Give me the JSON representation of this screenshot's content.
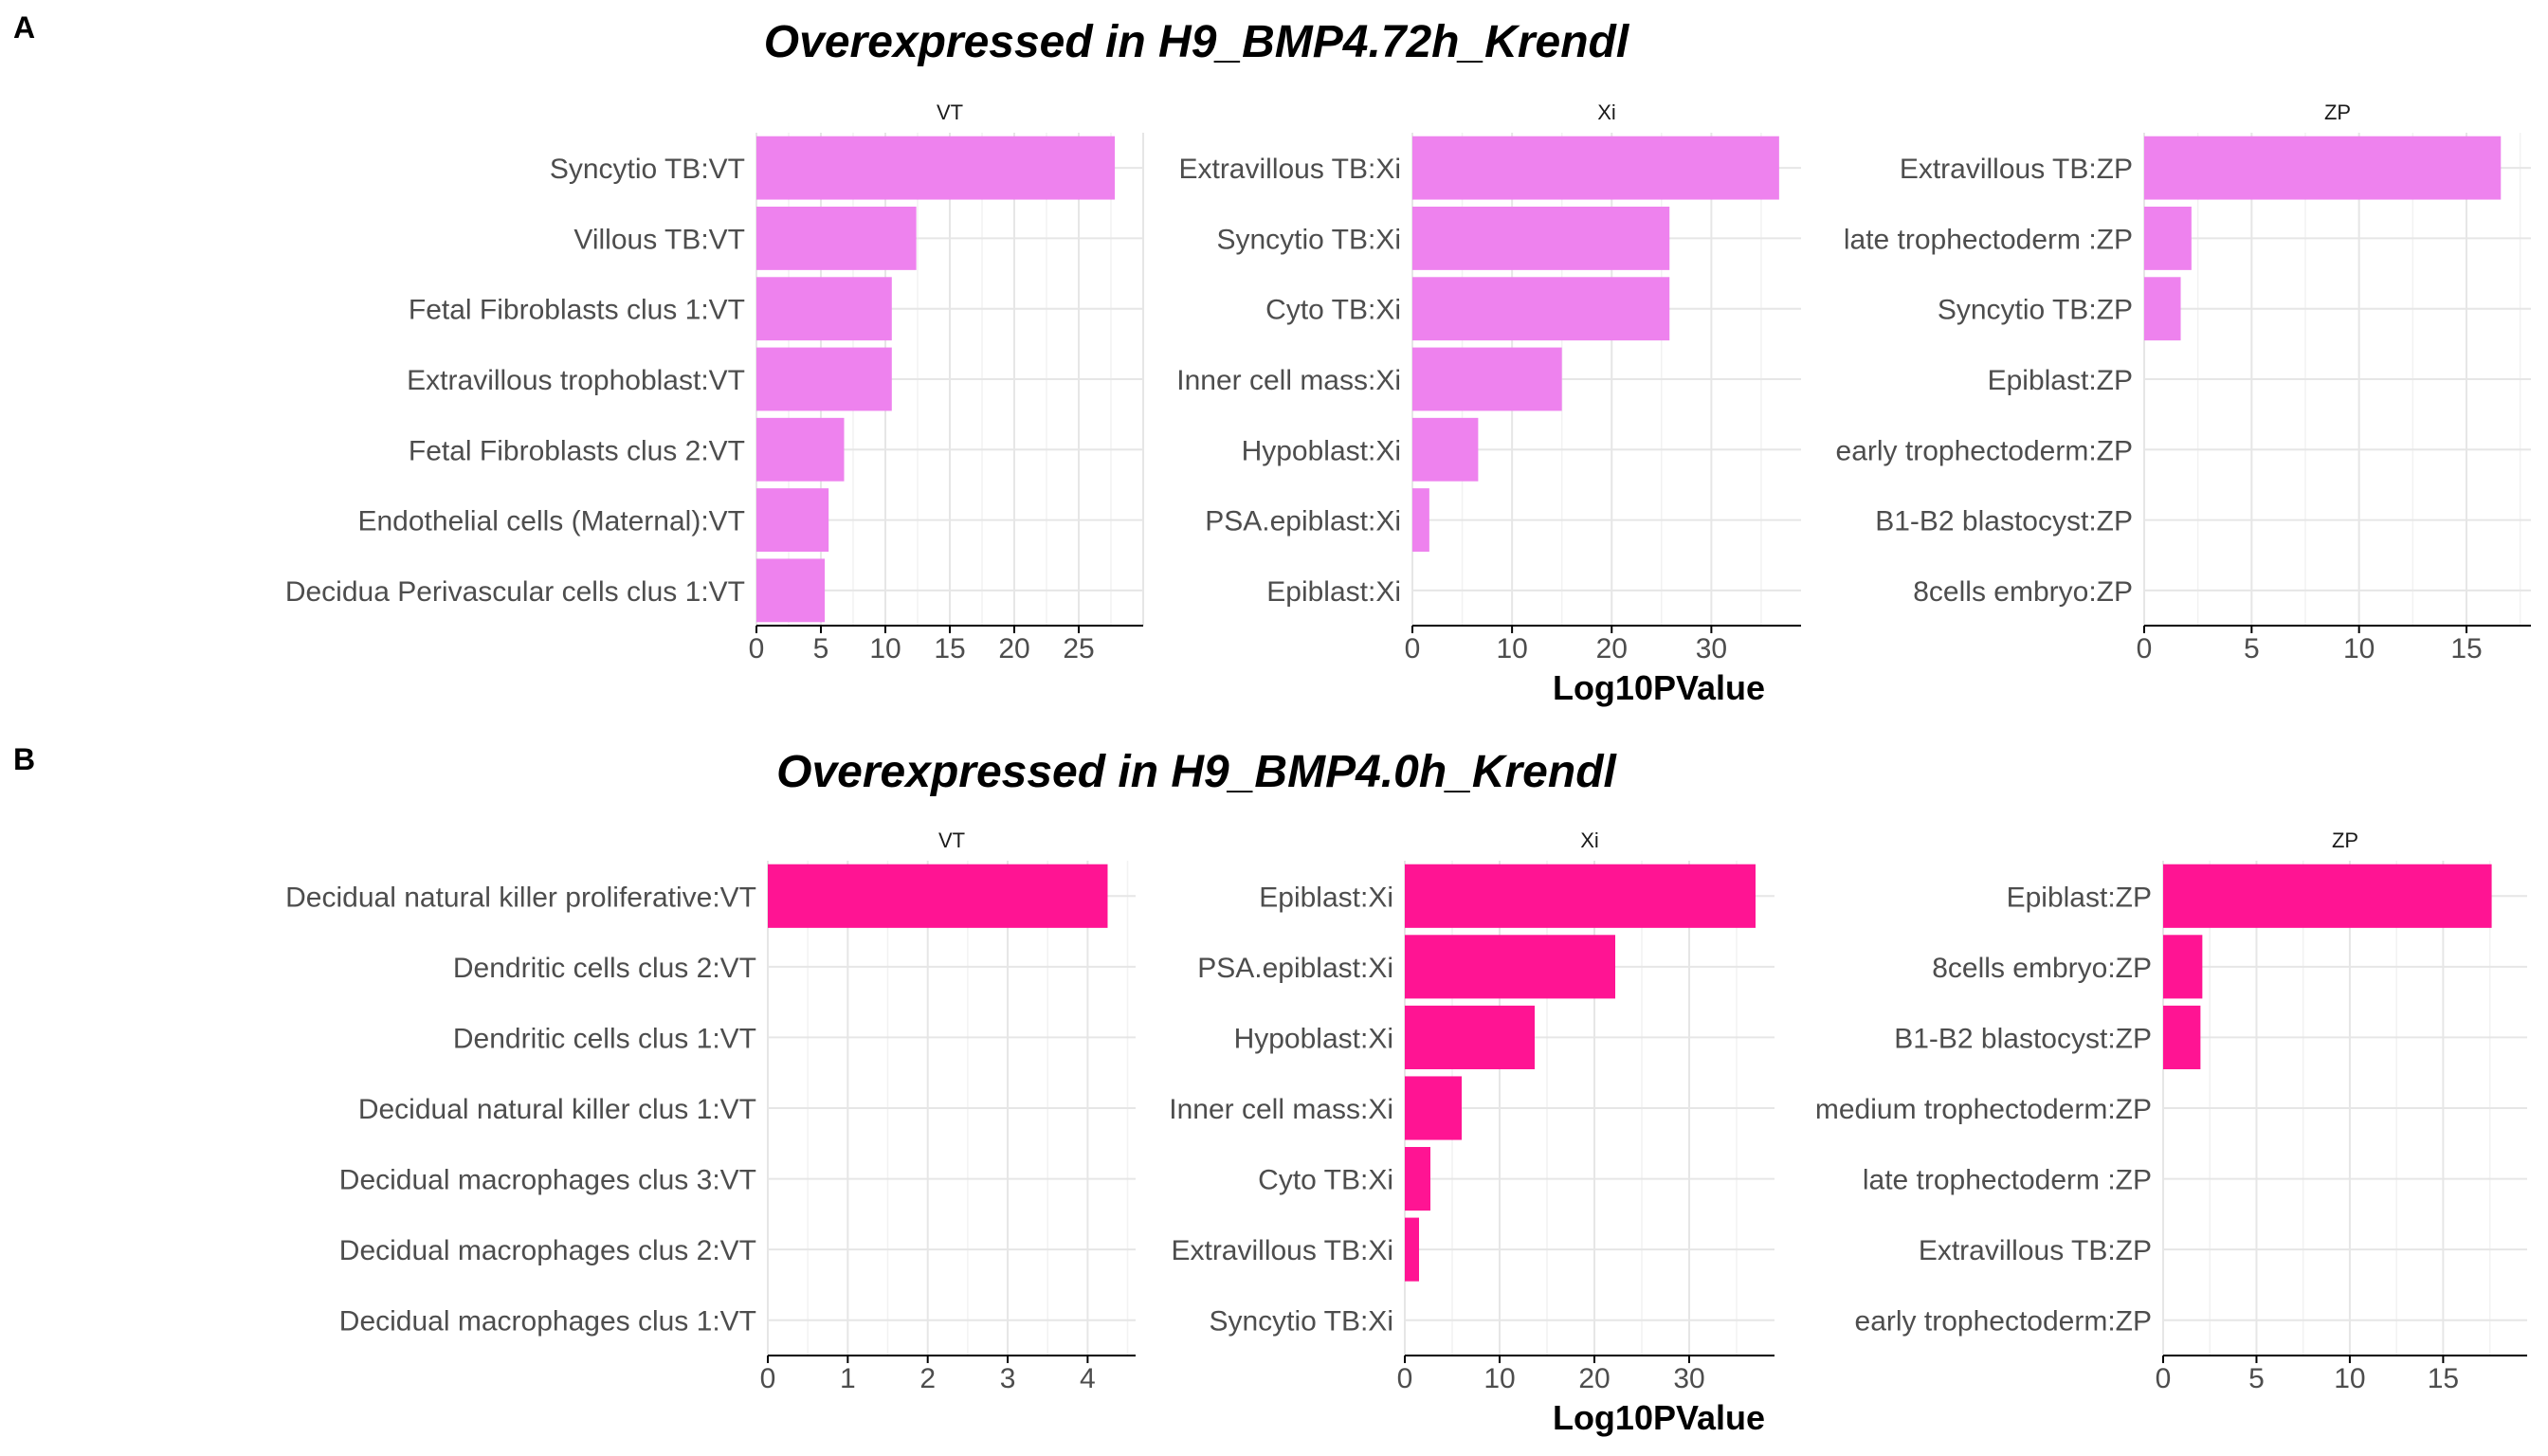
{
  "chart_data": [
    {
      "type": "bar",
      "panel_label": "A",
      "title": "Overexpressed in H9_BMP4.72h_Krendl",
      "xlabel": "Log10PValue",
      "bar_color": "#EE82EE",
      "grid": true,
      "facets": [
        {
          "name": "VT",
          "xlim": [
            0,
            30
          ],
          "ticks": [
            0,
            5,
            10,
            15,
            20,
            25
          ],
          "categories": [
            "Syncytio TB:VT",
            "Villous TB:VT",
            "Fetal Fibroblasts clus 1:VT",
            "Extravillous trophoblast:VT",
            "Fetal Fibroblasts clus 2:VT",
            "Endothelial cells (Maternal):VT",
            "Decidua Perivascular cells clus 1:VT"
          ],
          "values": [
            27.8,
            12.4,
            10.5,
            10.5,
            6.8,
            5.6,
            5.3
          ]
        },
        {
          "name": "Xi",
          "xlim": [
            0,
            39
          ],
          "ticks": [
            0,
            10,
            20,
            30
          ],
          "categories": [
            "Extravillous TB:Xi",
            "Syncytio TB:Xi",
            "Cyto TB:Xi",
            "Inner cell mass:Xi",
            "Hypoblast:Xi",
            "PSA.epiblast:Xi",
            "Epiblast:Xi"
          ],
          "values": [
            36.8,
            25.8,
            25.8,
            15.0,
            6.6,
            1.7,
            0
          ]
        },
        {
          "name": "ZP",
          "xlim": [
            0,
            18
          ],
          "ticks": [
            0,
            5,
            10,
            15
          ],
          "categories": [
            "Extravillous TB:ZP",
            "late trophectoderm :ZP",
            "Syncytio TB:ZP",
            "Epiblast:ZP",
            "early trophectoderm:ZP",
            "B1-B2 blastocyst:ZP",
            "8cells embryo:ZP"
          ],
          "values": [
            16.6,
            2.2,
            1.7,
            0,
            0,
            0,
            0
          ]
        }
      ]
    },
    {
      "type": "bar",
      "panel_label": "B",
      "title": "Overexpressed in H9_BMP4.0h_Krendl",
      "xlabel": "Log10PValue",
      "bar_color": "#FF1493",
      "grid": true,
      "facets": [
        {
          "name": "VT",
          "xlim": [
            0,
            4.6
          ],
          "ticks": [
            0,
            1,
            2,
            3,
            4
          ],
          "categories": [
            "Decidual natural killer proliferative:VT",
            "Dendritic cells clus 2:VT",
            "Dendritic cells clus 1:VT",
            "Decidual natural killer clus 1:VT",
            "Decidual macrophages clus 3:VT",
            "Decidual macrophages clus 2:VT",
            "Decidual macrophages clus 1:VT"
          ],
          "values": [
            4.25,
            0,
            0,
            0,
            0,
            0,
            0
          ]
        },
        {
          "name": "Xi",
          "xlim": [
            0,
            39
          ],
          "ticks": [
            0,
            10,
            20,
            30
          ],
          "categories": [
            "Epiblast:Xi",
            "PSA.epiblast:Xi",
            "Hypoblast:Xi",
            "Inner cell mass:Xi",
            "Cyto TB:Xi",
            "Extravillous TB:Xi",
            "Syncytio TB:Xi"
          ],
          "values": [
            37.0,
            22.2,
            13.7,
            6.0,
            2.7,
            1.5,
            0
          ]
        },
        {
          "name": "ZP",
          "xlim": [
            0,
            19.5
          ],
          "ticks": [
            0,
            5,
            10,
            15
          ],
          "categories": [
            "Epiblast:ZP",
            "8cells embryo:ZP",
            "B1-B2 blastocyst:ZP",
            "medium trophectoderm:ZP",
            "late trophectoderm :ZP",
            "Extravillous TB:ZP",
            "early trophectoderm:ZP"
          ],
          "values": [
            17.6,
            2.1,
            2.0,
            0,
            0,
            0,
            0
          ]
        }
      ]
    }
  ]
}
